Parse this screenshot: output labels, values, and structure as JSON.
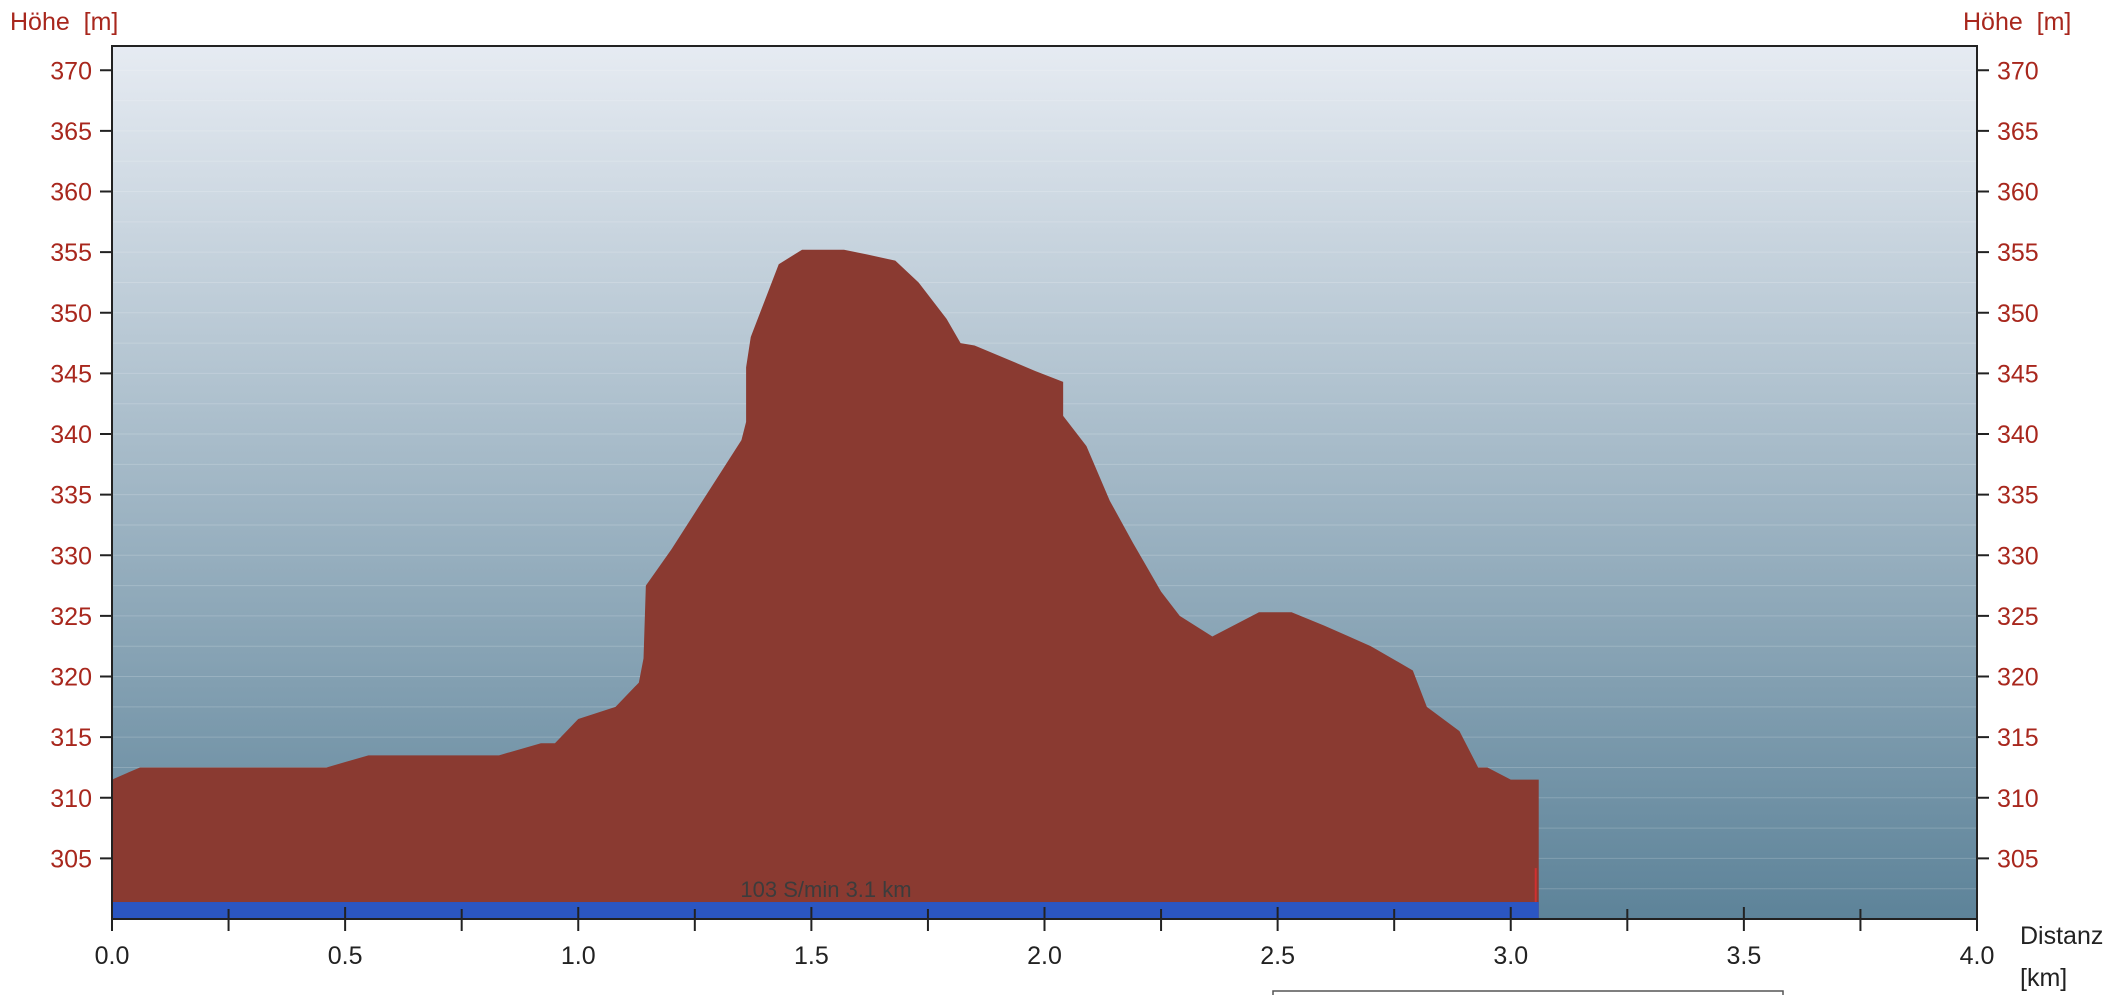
{
  "chart_data": {
    "type": "area",
    "ylabel_left": "Höhe  [m]",
    "ylabel_right": "Höhe  [m]",
    "xlabel": "Distanz",
    "xunit": "[km]",
    "xlim": [
      0,
      4
    ],
    "ylim": [
      300,
      372
    ],
    "xticks": [
      "0.0",
      "0.5",
      "1.0",
      "1.5",
      "2.0",
      "2.5",
      "3.0",
      "3.5",
      "4.0"
    ],
    "yticks": [
      "305",
      "310",
      "315",
      "320",
      "325",
      "330",
      "335",
      "340",
      "345",
      "350",
      "355",
      "360",
      "365",
      "370"
    ],
    "annotation": "103 S/min 3.1 km",
    "track_end_km": 3.06,
    "x": [
      0.0,
      0.06,
      0.1,
      0.2,
      0.3,
      0.4,
      0.46,
      0.55,
      0.65,
      0.75,
      0.83,
      0.92,
      0.95,
      1.0,
      1.08,
      1.13,
      1.14,
      1.145,
      1.2,
      1.25,
      1.3,
      1.35,
      1.36,
      1.36,
      1.37,
      1.4,
      1.43,
      1.48,
      1.52,
      1.57,
      1.62,
      1.68,
      1.73,
      1.79,
      1.82,
      1.85,
      1.9,
      1.98,
      2.04,
      2.04,
      2.09,
      2.14,
      2.19,
      2.25,
      2.29,
      2.36,
      2.41,
      2.46,
      2.53,
      2.6,
      2.7,
      2.79,
      2.82,
      2.89,
      2.93,
      2.95,
      3.0,
      3.06
    ],
    "y": [
      311.5,
      312.5,
      312.5,
      312.5,
      312.5,
      312.5,
      312.5,
      313.5,
      313.5,
      313.5,
      313.5,
      314.5,
      314.5,
      316.5,
      317.5,
      319.5,
      321.5,
      327.5,
      330.5,
      333.5,
      336.5,
      339.5,
      341,
      345.5,
      348,
      351,
      354,
      355.2,
      355.2,
      355.2,
      354.8,
      354.3,
      352.5,
      349.5,
      347.5,
      347.3,
      346.5,
      345.2,
      344.3,
      341.5,
      339,
      334.5,
      331,
      327,
      325,
      323.3,
      324.3,
      325.3,
      325.3,
      324.2,
      322.5,
      320.5,
      317.5,
      315.5,
      312.5,
      312.5,
      311.5,
      311.5
    ],
    "colors": {
      "area": "#8a3a31",
      "track_bar": "#2b56c2",
      "bg_top": "#e6ebf2",
      "bg_bottom": "#5d8399",
      "tick_label_y": "#a8271d"
    }
  }
}
